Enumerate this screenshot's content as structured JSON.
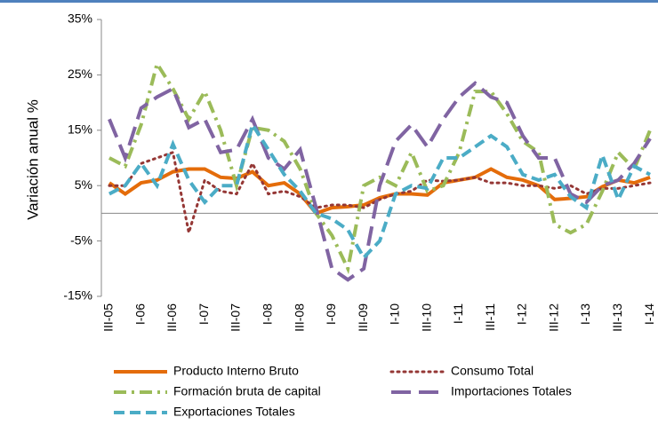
{
  "chart_data": {
    "type": "line",
    "y_label": "Variación anual %",
    "categories": [
      "III-05",
      null,
      "I-06",
      null,
      "III-06",
      null,
      "I-07",
      null,
      "III-07",
      null,
      "I-08",
      null,
      "III-08",
      null,
      "I-09",
      null,
      "III-09",
      null,
      "I-10",
      null,
      "III-10",
      null,
      "I-11",
      null,
      "III-11",
      null,
      "I-12",
      null,
      "III-12",
      null,
      "I-13",
      null,
      "III-13",
      null,
      "I-14"
    ],
    "ylim": [
      -15,
      35
    ],
    "yticks": [
      {
        "value": -15,
        "label": "-15%"
      },
      {
        "value": -5,
        "label": "-5%"
      },
      {
        "value": 5,
        "label": "5%"
      },
      {
        "value": 15,
        "label": "15%"
      },
      {
        "value": 25,
        "label": "25%"
      },
      {
        "value": 35,
        "label": "35%"
      }
    ],
    "series": [
      {
        "name": "Producto Interno Bruto",
        "color": "#e46c0a",
        "dash": "solid",
        "values": [
          5.5,
          3.5,
          5.5,
          6,
          7.5,
          8,
          8,
          6.5,
          6.3,
          7.5,
          5,
          5.5,
          3.5,
          0,
          1,
          1.2,
          1.5,
          2.8,
          3.5,
          3.5,
          3.3,
          5.5,
          6,
          6.5,
          8,
          6.5,
          6,
          5,
          2.5,
          2.7,
          3,
          4.8,
          6,
          5.5,
          6.5
        ]
      },
      {
        "name": "Consumo Total",
        "color": "#953735",
        "dash": "dot",
        "values": [
          5,
          5,
          9,
          10,
          11,
          -3.5,
          6,
          4,
          3.5,
          9,
          3.5,
          4,
          3,
          1,
          1.5,
          1.5,
          1,
          2.5,
          3.5,
          4,
          6,
          5.8,
          6,
          6.5,
          5.5,
          5.5,
          5,
          5,
          4.5,
          5,
          3.5,
          4.5,
          4.5,
          5,
          5.5
        ]
      },
      {
        "name": "Formación bruta de capital",
        "color": "#9bbb59",
        "dash": "dashdot",
        "values": [
          10,
          8.5,
          16,
          27,
          22.5,
          17,
          22,
          15,
          5,
          15.5,
          15,
          13,
          8,
          0,
          -4,
          -10,
          5,
          6.5,
          5,
          11,
          4,
          5,
          11,
          22,
          22,
          18,
          13,
          11,
          -2,
          -3.5,
          -2,
          4,
          11,
          8,
          15
        ]
      },
      {
        "name": "Importaciones Totales",
        "color": "#8064a2",
        "dash": "longdash",
        "values": [
          17,
          10,
          19,
          21,
          22.5,
          15.5,
          17,
          11,
          11.5,
          17,
          10,
          8,
          11.5,
          1,
          -10,
          -12,
          -10,
          5,
          13,
          16,
          12,
          17,
          21,
          23.5,
          21,
          20,
          14,
          10,
          10,
          3.5,
          2,
          5,
          6,
          9,
          13.5
        ]
      },
      {
        "name": "Exportaciones  Totales",
        "color": "#4bacc6",
        "dash": "dash",
        "values": [
          3.5,
          5,
          9,
          5,
          12.5,
          6,
          2,
          5,
          5,
          16,
          11.5,
          7,
          4,
          0,
          -1,
          -3,
          -8,
          -5,
          3.5,
          5,
          4.5,
          10,
          10,
          12,
          14,
          12,
          7,
          6,
          7,
          3,
          1,
          10.5,
          2.5,
          8.5,
          7
        ]
      }
    ]
  }
}
